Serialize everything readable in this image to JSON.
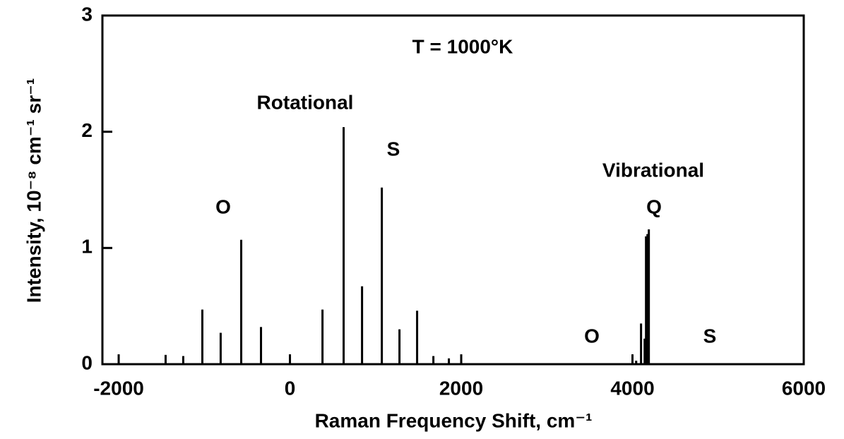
{
  "chart_data": {
    "type": "stem",
    "xlabel": "Raman Frequency Shift, cm⁻¹",
    "ylabel": "Intensity, 10⁻⁸ cm⁻¹ sr⁻¹",
    "annotations": [
      "T = 1000°K",
      "Rotational",
      "O",
      "S",
      "Vibrational",
      "Q",
      "O",
      "S"
    ],
    "x": [
      -1452,
      -1246,
      -1023,
      -809,
      -569,
      -338,
      380,
      627,
      842,
      1073,
      1279,
      1485,
      1675,
      1856,
      4043,
      4100,
      4142,
      4158,
      4175,
      4191
    ],
    "values": [
      0.08,
      0.07,
      0.47,
      0.27,
      1.07,
      0.32,
      0.47,
      2.04,
      0.67,
      1.52,
      0.3,
      0.46,
      0.07,
      0.05,
      0.03,
      0.35,
      0.22,
      1.1,
      1.12,
      1.16
    ],
    "color": "#000000",
    "xlim": [
      -2190,
      6000
    ],
    "ylim": [
      0,
      3
    ],
    "xticks": [
      -2000,
      0,
      2000,
      4000,
      6000
    ],
    "yticks": [
      0,
      1,
      2,
      3
    ]
  }
}
